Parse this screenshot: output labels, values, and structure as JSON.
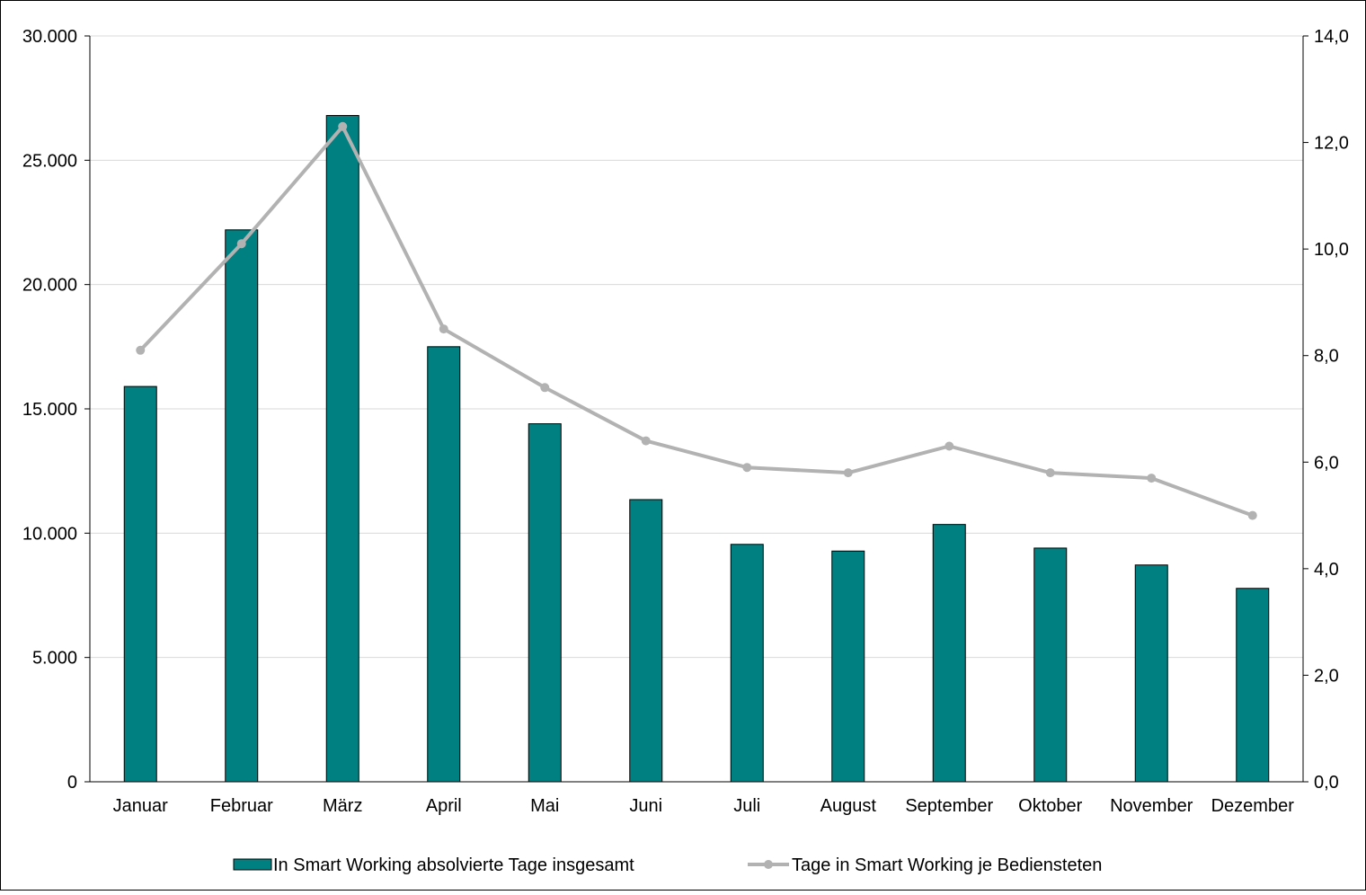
{
  "chart_data": {
    "type": "bar",
    "categories": [
      "Januar",
      "Februar",
      "März",
      "April",
      "Mai",
      "Juni",
      "Juli",
      "August",
      "September",
      "Oktober",
      "November",
      "Dezember"
    ],
    "series": [
      {
        "name": "In Smart Working absolvierte Tage insgesamt",
        "type": "bar",
        "axis": "left",
        "color": "#008080",
        "values": [
          15900,
          22200,
          26800,
          17500,
          14400,
          11350,
          9550,
          9280,
          10350,
          9400,
          8720,
          7780
        ]
      },
      {
        "name": "Tage in Smart Working je Bediensteten",
        "type": "line",
        "axis": "right",
        "color": "#B2B2B2",
        "values": [
          8.1,
          10.1,
          12.3,
          8.5,
          7.4,
          6.4,
          5.9,
          5.8,
          6.3,
          5.8,
          5.7,
          5.0
        ]
      }
    ],
    "y_left": {
      "ylim": [
        0,
        30000
      ],
      "ticks": [
        0,
        5000,
        10000,
        15000,
        20000,
        25000,
        30000
      ],
      "tick_labels": [
        "0",
        "5.000",
        "10.000",
        "15.000",
        "20.000",
        "25.000",
        "30.000"
      ]
    },
    "y_right": {
      "ylim": [
        0,
        14
      ],
      "ticks": [
        0,
        2,
        4,
        6,
        8,
        10,
        12,
        14
      ],
      "tick_labels": [
        "0,0",
        "2,0",
        "4,0",
        "6,0",
        "8,0",
        "10,0",
        "12,0",
        "14,0"
      ]
    },
    "title": "",
    "xlabel": "",
    "ylabel": "",
    "grid": true,
    "legend": "bottom"
  }
}
